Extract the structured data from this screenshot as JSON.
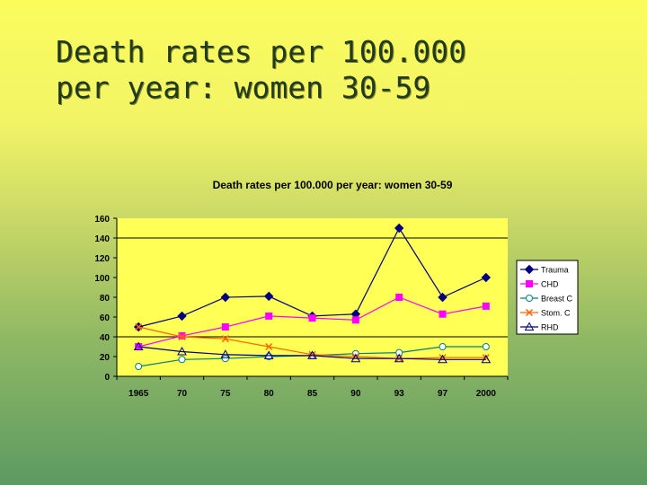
{
  "slide": {
    "title": "Death rates per 100.000\nper year: women 30-59"
  },
  "chart_data": {
    "type": "line",
    "title": "Death rates per 100.000 per year: women 30-59",
    "xlabel": "",
    "ylabel": "",
    "categories": [
      "1965",
      "70",
      "75",
      "80",
      "85",
      "90",
      "93",
      "97",
      "2000"
    ],
    "ylim": [
      0,
      160
    ],
    "yticks": [
      0,
      20,
      40,
      60,
      80,
      100,
      120,
      140,
      160
    ],
    "gridlines": [
      40,
      140
    ],
    "legend_position": "right",
    "series": [
      {
        "name": "Trauma",
        "color": "#000080",
        "marker": "diamond",
        "values": [
          50,
          61,
          80,
          81,
          61,
          63,
          150,
          80,
          100
        ]
      },
      {
        "name": "CHD",
        "color": "#ff00ff",
        "marker": "square",
        "values": [
          30,
          41,
          50,
          61,
          59,
          57,
          80,
          63,
          71
        ]
      },
      {
        "name": "Breast C",
        "color": "#008080",
        "marker": "circle",
        "values": [
          10,
          17,
          18,
          20,
          21,
          23,
          24,
          30,
          30
        ]
      },
      {
        "name": "Stom. C",
        "color": "#ff6600",
        "marker": "x",
        "values": [
          50,
          40,
          38,
          30,
          22,
          20,
          18,
          19,
          19
        ]
      },
      {
        "name": "RHD",
        "color": "#000080",
        "marker": "triangle",
        "values": [
          30,
          25,
          22,
          21,
          21,
          18,
          18,
          17,
          17
        ]
      }
    ]
  }
}
